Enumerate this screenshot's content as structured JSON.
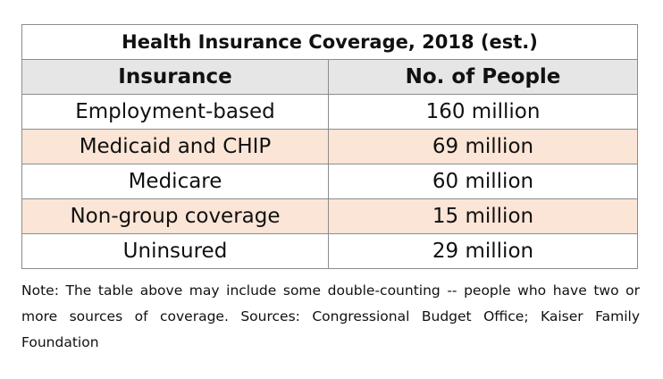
{
  "table": {
    "title": "Health Insurance Coverage, 2018 (est.)",
    "headers": [
      "Insurance",
      "No. of People"
    ],
    "rows": [
      [
        "Employment-based",
        "160 million"
      ],
      [
        "Medicaid and CHIP",
        "69 million"
      ],
      [
        "Medicare",
        "60 million"
      ],
      [
        "Non-group coverage",
        "15 million"
      ],
      [
        "Uninsured",
        "29 million"
      ]
    ],
    "header_background": "#e6e6e6",
    "shaded_row_background": "#fbe5d6",
    "border_color": "#8c8c8c"
  },
  "note": "Note: The table above may include some double-counting -- people who have two or more sources of coverage. Sources: Congressional Budget Office; Kaiser Family Foundation"
}
